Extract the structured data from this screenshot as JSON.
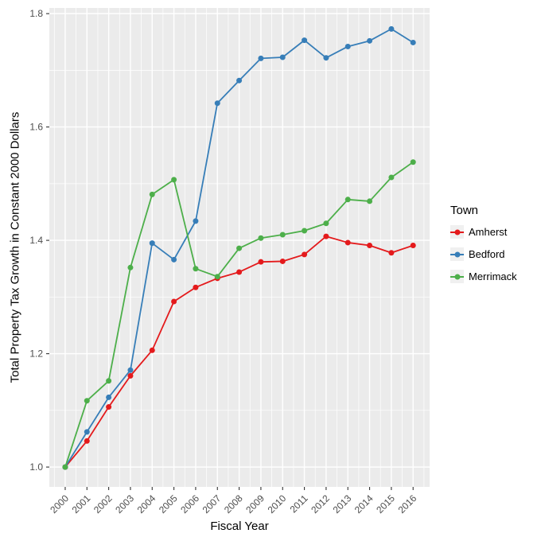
{
  "chart_data": {
    "type": "line",
    "title": "",
    "xlabel": "Fiscal Year",
    "ylabel": "Total Property Tax Growth in Constant 2000 Dollars",
    "legend_title": "Town",
    "legend_position": "right",
    "grid": true,
    "x": [
      2000,
      2001,
      2002,
      2003,
      2004,
      2005,
      2006,
      2007,
      2008,
      2009,
      2010,
      2011,
      2012,
      2013,
      2014,
      2015,
      2016
    ],
    "x_tick_labels": [
      "2000",
      "2001",
      "2002",
      "2003",
      "2004",
      "2005",
      "2006",
      "2007",
      "2008",
      "2009",
      "2010",
      "2011",
      "2012",
      "2013",
      "2014",
      "2015",
      "2016"
    ],
    "y_major_ticks": [
      1.0,
      1.2,
      1.4,
      1.6,
      1.8
    ],
    "y_tick_labels": [
      "1.0",
      "1.2",
      "1.4",
      "1.6",
      "1.8"
    ],
    "y_minor": [
      1.1,
      1.3,
      1.5,
      1.7
    ],
    "x_minor": [
      1999.5,
      2000.5,
      2001.5,
      2002.5,
      2003.5,
      2004.5,
      2005.5,
      2006.5,
      2007.5,
      2008.5,
      2009.5,
      2010.5,
      2011.5,
      2012.5,
      2013.5,
      2014.5,
      2015.5,
      2016.5
    ],
    "xlim": [
      1999.27,
      2016.76
    ],
    "ylim": [
      0.965,
      1.81
    ],
    "series": [
      {
        "name": "Amherst",
        "color": "#E41A1C",
        "values": [
          1.0,
          1.046,
          1.106,
          1.161,
          1.206,
          1.292,
          1.317,
          1.333,
          1.344,
          1.362,
          1.363,
          1.375,
          1.407,
          1.396,
          1.391,
          1.378,
          1.391
        ]
      },
      {
        "name": "Bedford",
        "color": "#377EB8",
        "values": [
          1.0,
          1.062,
          1.123,
          1.171,
          1.395,
          1.366,
          1.434,
          1.642,
          1.682,
          1.721,
          1.723,
          1.753,
          1.722,
          1.742,
          1.752,
          1.773,
          1.749
        ]
      },
      {
        "name": "Merrimack",
        "color": "#4DAF4A",
        "values": [
          1.0,
          1.117,
          1.152,
          1.352,
          1.481,
          1.507,
          1.35,
          1.336,
          1.386,
          1.404,
          1.41,
          1.417,
          1.43,
          1.472,
          1.469,
          1.511,
          1.538
        ]
      }
    ],
    "theme": {
      "panel_bg": "#EBEBEB",
      "grid_color": "#FFFFFF",
      "tick_color": "#333333",
      "tick_label_color": "#4D4D4D",
      "axis_title_color": "#000000",
      "legend_key_bg": "#F0F0F0"
    }
  }
}
